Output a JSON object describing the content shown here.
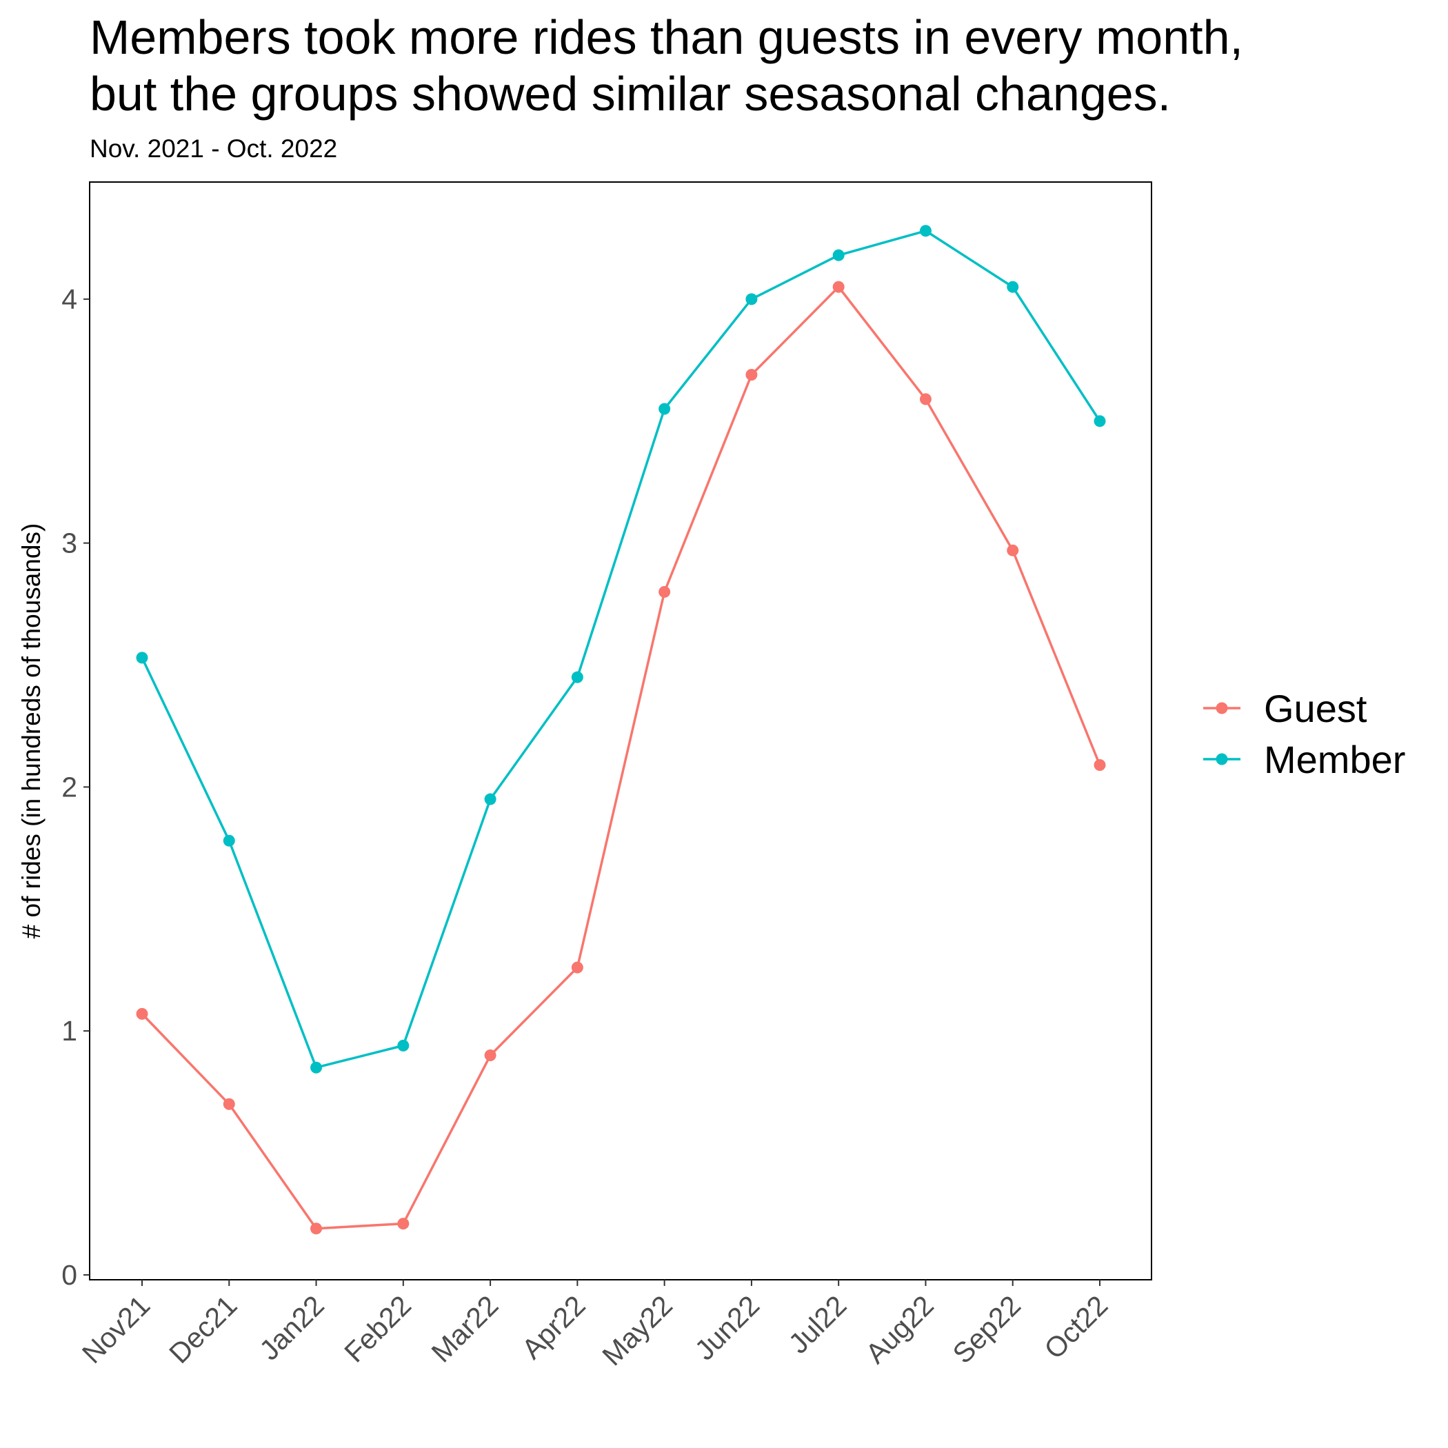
{
  "chart_data": {
    "type": "line",
    "title_line1": "Members took more rides than guests in every month,",
    "title_line2": "but the groups showed similar sesasonal changes.",
    "subtitle": "Nov. 2021 - Oct. 2022",
    "xlabel": "",
    "ylabel": "# of rides (in hundreds of thousands)",
    "categories": [
      "Nov21",
      "Dec21",
      "Jan22",
      "Feb22",
      "Mar22",
      "Apr22",
      "May22",
      "Jun22",
      "Jul22",
      "Aug22",
      "Sep22",
      "Oct22"
    ],
    "yticks": [
      "0",
      "1",
      "2",
      "3",
      "4"
    ],
    "ylim": [
      -0.02,
      4.48
    ],
    "grid": false,
    "legend_position": "right",
    "series": [
      {
        "name": "Guest",
        "color": "#F8766D",
        "values": [
          1.07,
          0.7,
          0.19,
          0.21,
          0.9,
          1.26,
          2.8,
          3.69,
          4.05,
          3.59,
          2.97,
          2.09
        ]
      },
      {
        "name": "Member",
        "color": "#00BFC4",
        "values": [
          2.53,
          1.78,
          0.85,
          0.94,
          1.95,
          2.45,
          3.55,
          4.0,
          4.18,
          4.28,
          4.05,
          3.5
        ]
      }
    ]
  }
}
